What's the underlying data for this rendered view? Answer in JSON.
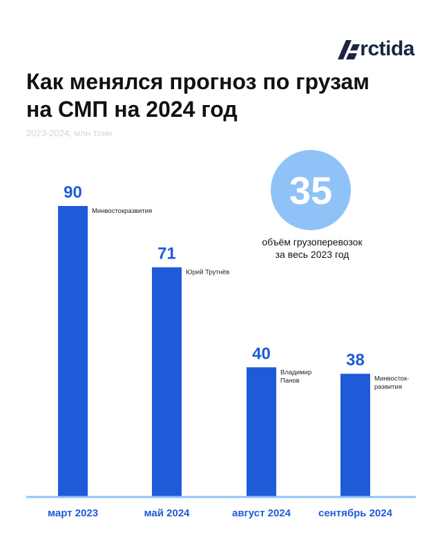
{
  "brand": "rctida",
  "title_line1": "Как менялся прогноз по грузам",
  "title_line2": "на СМП на 2024 год",
  "subtitle": "2023-2024, млн тонн",
  "callout": {
    "value": "35",
    "caption_line1": "объём грузоперевозок",
    "caption_line2": "за весь 2023 год"
  },
  "colors": {
    "bar": "#1f5ad8",
    "circle": "#8fc3f7",
    "axis": "#8fc3f7"
  },
  "chart_data": {
    "type": "bar",
    "title": "Как менялся прогноз по грузам на СМП на 2024 год",
    "subtitle": "2023-2024, млн тонн",
    "categories": [
      "март 2023",
      "май 2024",
      "август 2024",
      "сентябрь 2024"
    ],
    "values": [
      90,
      71,
      40,
      38
    ],
    "sources": [
      [
        "Минвостокразвития"
      ],
      [
        "Юрий Трутнёв"
      ],
      [
        "Владимир",
        "Панов"
      ],
      [
        "Минвосток-",
        "развития"
      ]
    ],
    "ylim": [
      0,
      90
    ]
  }
}
